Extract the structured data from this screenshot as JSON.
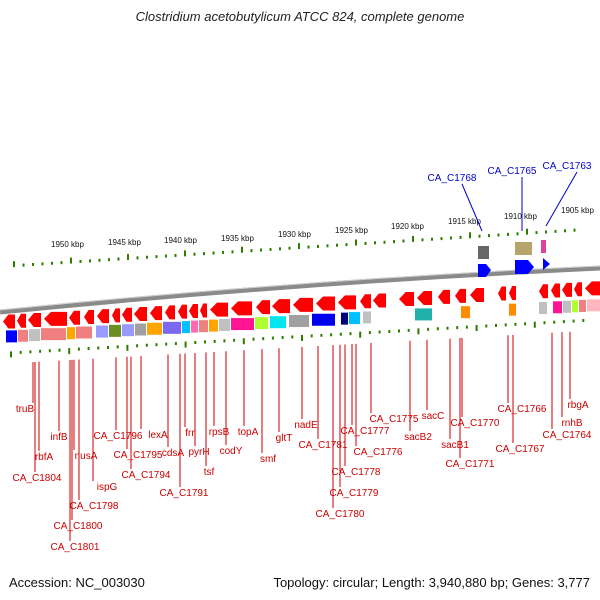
{
  "title": "Clostridium acetobutylicum ATCC 824, complete genome",
  "footer": {
    "accession": "Accession: NC_003030",
    "topology": "Topology: circular; Length: 3,940,880 bp; Genes: 3,777"
  },
  "colors": {
    "gene_red": "#ff0000",
    "label_red": "#cc0000",
    "callout_blue": "#0000cc",
    "tick_green": "#2e7d00",
    "backbone_gray": "#888888"
  },
  "ruler": {
    "unit": "kbp",
    "labels": [
      "1950 kbp",
      "1945 kbp",
      "1940 kbp",
      "1935 kbp",
      "1930 kbp",
      "1925 kbp",
      "1920 kbp",
      "1915 kbp",
      "1910 kbp",
      "1905 kbp"
    ]
  },
  "callouts": [
    "CA_C1768",
    "CA_C1765",
    "CA_C1763"
  ],
  "gene_labels": [
    "truB",
    "rbfA",
    "infB",
    "CA_C1804",
    "nusA",
    "CA_C1798",
    "ispG",
    "CA_C1800",
    "CA_C1801",
    "CA_C1796",
    "CA_C1795",
    "lexA",
    "CA_C1794",
    "cdsA",
    "frr",
    "CA_C1791",
    "pyrH",
    "tsf",
    "rpsB",
    "codY",
    "topA",
    "smf",
    "gltT",
    "nadE",
    "CA_C1781",
    "CA_C1777",
    "CA_C1778",
    "CA_C1779",
    "CA_C1780",
    "CA_C1775",
    "CA_C1776",
    "sacB2",
    "sacC",
    "sacB1",
    "CA_C1770",
    "CA_C1771",
    "CA_C1766",
    "CA_C1767",
    "rnhB",
    "CA_C1764",
    "rbgA"
  ]
}
